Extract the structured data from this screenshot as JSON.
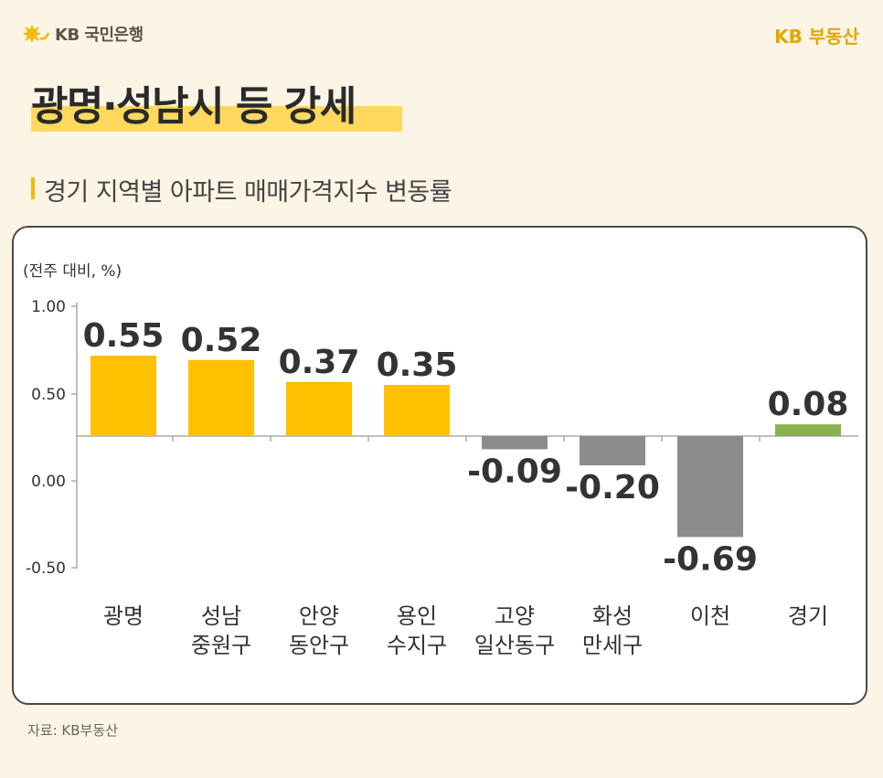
{
  "brand": {
    "bank_name": "KB 국민은행",
    "realestate_name": "KB 부동산"
  },
  "headline": "광명·성남시 등 강세",
  "subtitle": "경기 지역별 아파트 매매가격지수 변동률",
  "footer": {
    "source": "자료: KB부동산"
  },
  "colors": {
    "background": "#fcf4e4",
    "accent_yellow": "#ffc000",
    "highlight": "#ffd95e",
    "negative_gray": "#8a8c8e",
    "total_green": "#8ab04f",
    "brand_gold": "#e0a800"
  },
  "chart_data": {
    "type": "bar",
    "unit_label": "(전주 대비, %)",
    "categories": [
      [
        "광명"
      ],
      [
        "성남",
        "중원구"
      ],
      [
        "안양",
        "동안구"
      ],
      [
        "용인",
        "수지구"
      ],
      [
        "고양",
        "일산동구"
      ],
      [
        "화성",
        "만세구"
      ],
      [
        "이천"
      ],
      [
        "경기"
      ]
    ],
    "values": [
      0.55,
      0.52,
      0.37,
      0.35,
      -0.09,
      -0.2,
      -0.69,
      0.08
    ],
    "value_labels": [
      "0.55",
      "0.52",
      "0.37",
      "0.35",
      "-0.09",
      "-0.20",
      "-0.69",
      "0.08"
    ],
    "bar_colors": [
      "#ffc000",
      "#ffc000",
      "#ffc000",
      "#ffc000",
      "#8a8c8e",
      "#8a8c8e",
      "#8a8c8e",
      "#8ab04f"
    ],
    "y_ticks": [
      "1.00",
      "0.50",
      "0.00",
      "-0.50"
    ],
    "ylim": [
      -1.0,
      1.0
    ],
    "grid": false,
    "legend": "none"
  }
}
